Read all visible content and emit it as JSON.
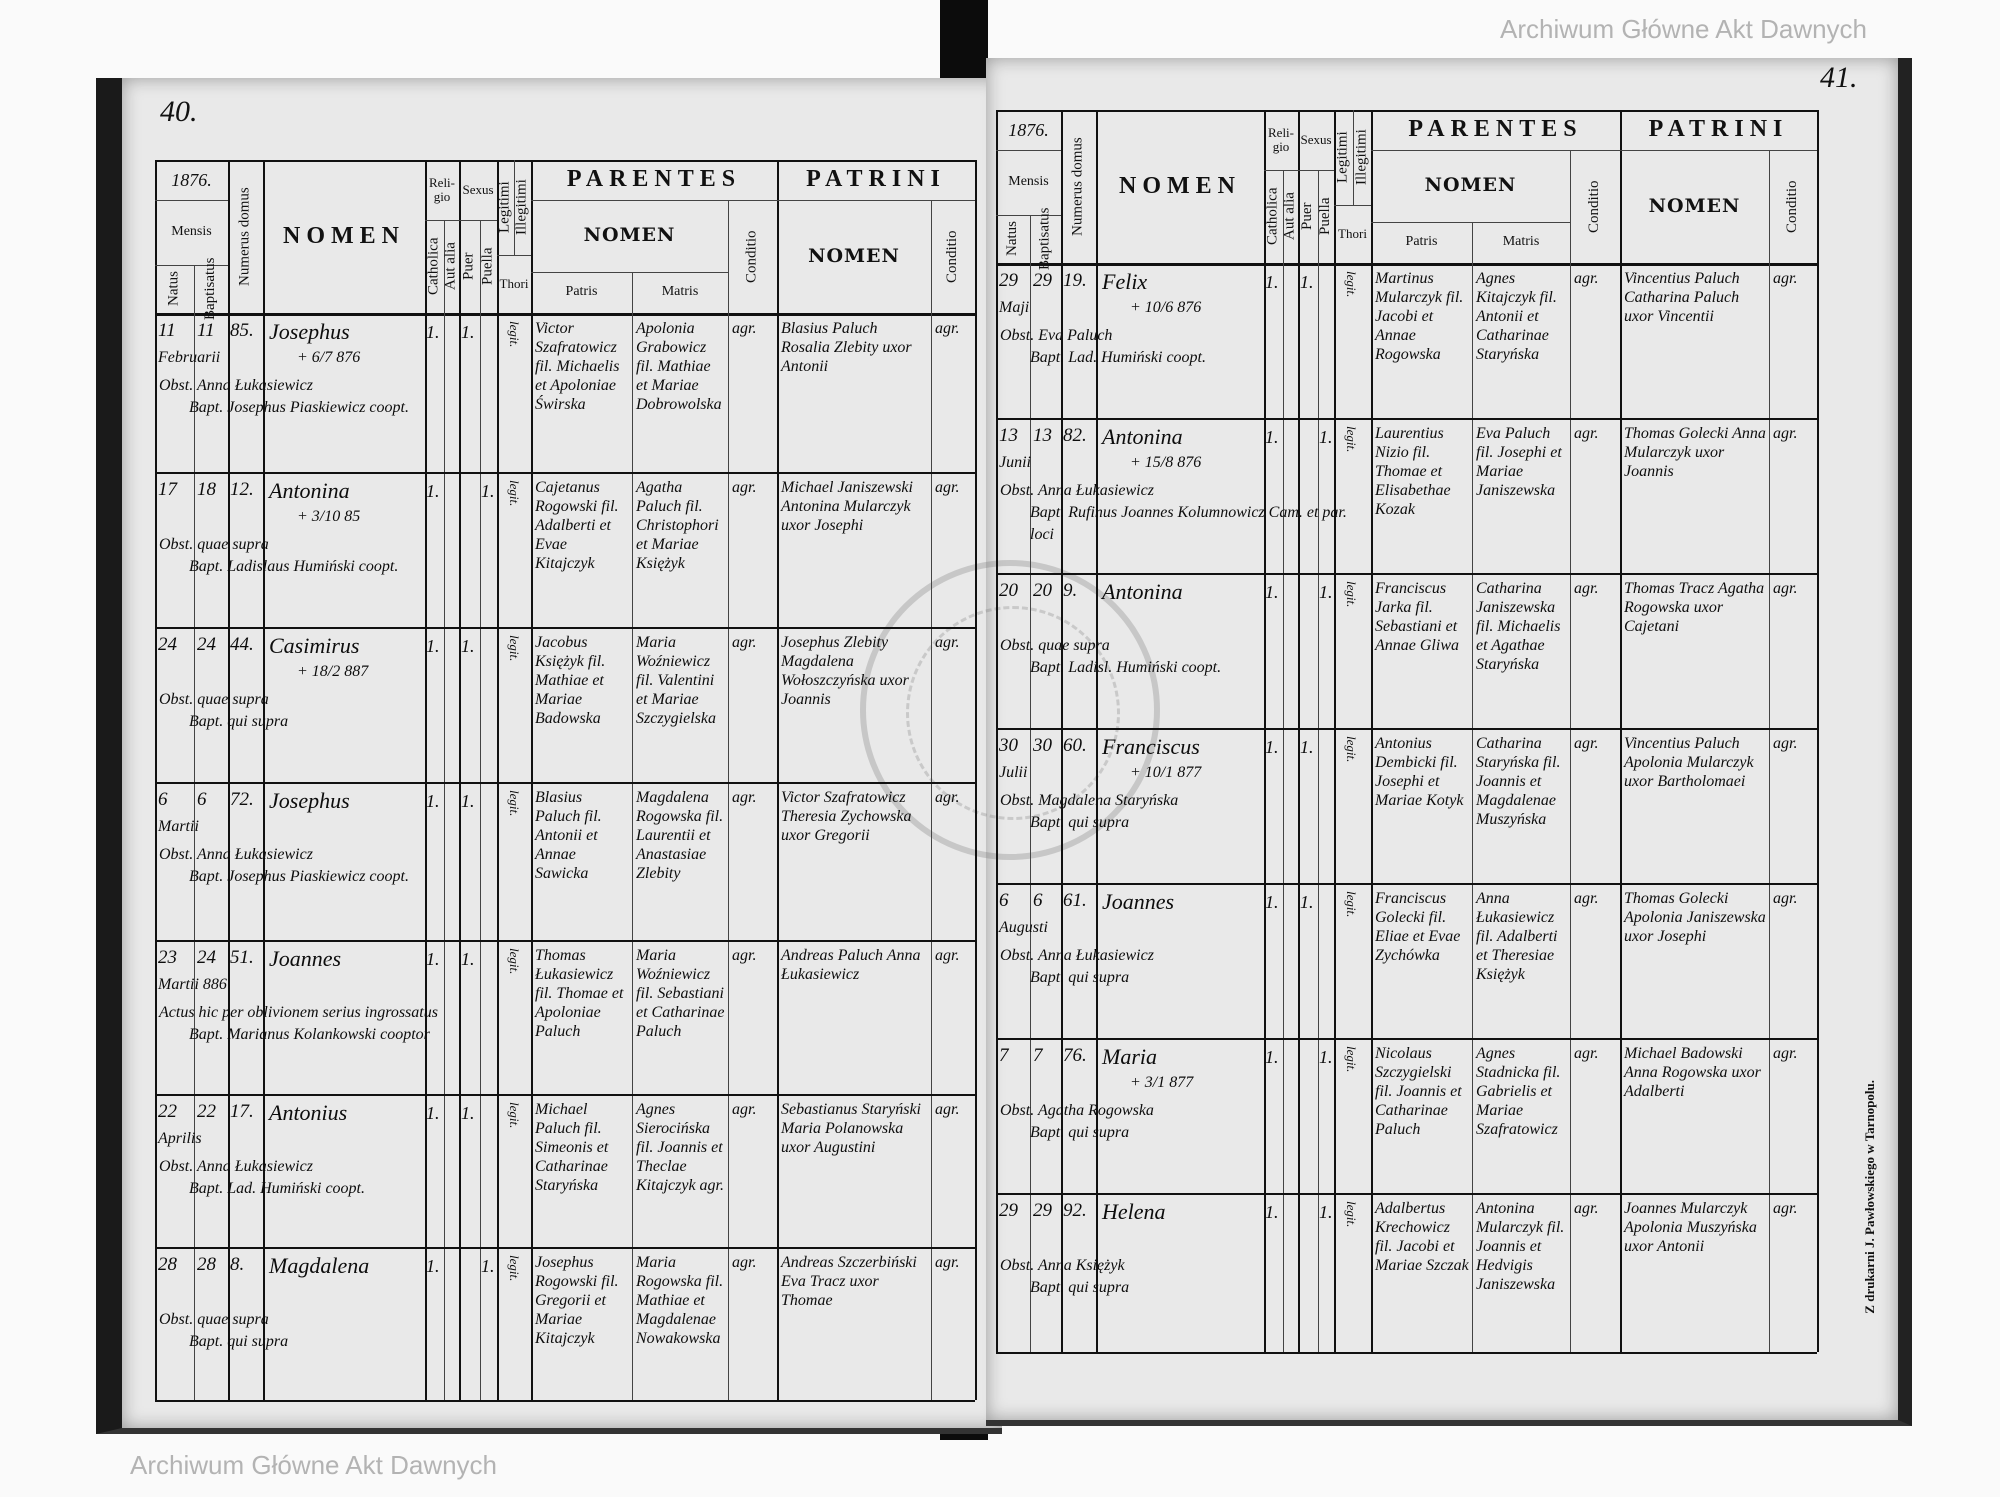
{
  "watermark": "Archiwum Główne Akt Dawnych",
  "stamp_text": "ARCHIWUM GŁÓWNE AKT DAWNYCH",
  "imprint": "Z drukarni J. Pawłowskiego w Tarnopolu.",
  "headers": {
    "mensis": "Mensis",
    "natus": "Natus",
    "baptisatus": "Baptisatus",
    "numerus_domus": "Numerus domus",
    "nomen": "NOMEN",
    "religio": "Reli-gio",
    "catholica": "Catholica",
    "aut_alia": "Aut alia",
    "sexus": "Sexus",
    "puer": "Puer",
    "puella": "Puella",
    "legitimi": "Legitimi",
    "illegitimi": "Illegitimi",
    "thori": "Thori",
    "parentes": "PARENTES",
    "parentes_nomen": "NOMEN",
    "patris": "Patris",
    "matris": "Matris",
    "conditio": "Conditio",
    "patrini": "PATRINI",
    "patrini_nomen": "NOMEN"
  },
  "pages": [
    {
      "page_number": "40.",
      "year": "1876.",
      "entries": [
        {
          "natus": "11",
          "baptisatus": "11",
          "mensis": "Februarii",
          "domus": "85.",
          "nomen": "Josephus",
          "death": "+ 6/7 876",
          "catholica": "1.",
          "puer": "1.",
          "thori": "legit.",
          "patris": "Victor Szafratowicz fil. Michaelis et Apoloniae Świrska",
          "matris": "Apolonia Grabowicz fil. Mathiae et Mariae Dobrowolska",
          "conditio": "agr.",
          "patrini": "Blasius Paluch Rosalia Zlebity uxor Antonii",
          "patrini_conditio": "agr.",
          "note1": "Obst. Anna Łukasiewicz",
          "note2": "Bapt. Josephus Piaskiewicz coopt."
        },
        {
          "natus": "17",
          "baptisatus": "18",
          "domus": "12.",
          "nomen": "Antonina",
          "death": "+ 3/10 85",
          "catholica": "1.",
          "puella": "1.",
          "thori": "legit.",
          "patris": "Cajetanus Rogowski fil. Adalberti et Evae Kitajczyk",
          "matris": "Agatha Paluch fil. Christophori et Mariae Księżyk",
          "conditio": "agr.",
          "patrini": "Michael Janiszewski Antonina Mularczyk uxor Josephi",
          "patrini_conditio": "agr.",
          "note1": "Obst. quae supra",
          "note2": "Bapt. Ladislaus Humiński coopt."
        },
        {
          "natus": "24",
          "baptisatus": "24",
          "domus": "44.",
          "nomen": "Casimirus",
          "death": "+ 18/2 887",
          "catholica": "1.",
          "puer": "1.",
          "thori": "legit.",
          "patris": "Jacobus Księżyk fil. Mathiae et Mariae Badowska",
          "matris": "Maria Woźniewicz fil. Valentini et Mariae Szczygielska",
          "conditio": "agr.",
          "patrini": "Josephus Zlebity Magdalena Wołoszczyńska uxor Joannis",
          "patrini_conditio": "agr.",
          "note1": "Obst. quae supra",
          "note2": "Bapt. qui supra"
        },
        {
          "natus": "6",
          "baptisatus": "6",
          "mensis": "Martii",
          "domus": "72.",
          "nomen": "Josephus",
          "catholica": "1.",
          "puer": "1.",
          "thori": "legit.",
          "patris": "Blasius Paluch fil. Antonii et Annae Sawicka",
          "matris": "Magdalena Rogowska fil. Laurentii et Anastasiae Zlebity",
          "conditio": "agr.",
          "patrini": "Victor Szafratowicz Theresia Zychowska uxor Gregorii",
          "patrini_conditio": "agr.",
          "note1": "Obst. Anna Łukasiewicz",
          "note2": "Bapt. Josephus Piaskiewicz coopt."
        },
        {
          "natus": "23",
          "baptisatus": "24",
          "mensis": "Martii 886",
          "domus": "51.",
          "nomen": "Joannes",
          "catholica": "1.",
          "puer": "1.",
          "thori": "legit.",
          "patris": "Thomas Łukasiewicz fil. Thomae et Apoloniae Paluch",
          "matris": "Maria Woźniewicz fil. Sebastiani et Catharinae Paluch",
          "conditio": "agr.",
          "patrini": "Andreas Paluch Anna Łukasiewicz",
          "patrini_conditio": "agr.",
          "note1": "Actus hic per oblivionem serius ingrossatus",
          "note2": "Bapt. Marianus Kolankowski cooptor"
        },
        {
          "natus": "22",
          "baptisatus": "22",
          "mensis": "Aprilis",
          "domus": "17.",
          "nomen": "Antonius",
          "catholica": "1.",
          "puer": "1.",
          "thori": "legit.",
          "patris": "Michael Paluch fil. Simeonis et Catharinae Staryńska",
          "matris": "Agnes Sierocińska fil. Joannis et Theclae Kitajczyk agr.",
          "conditio": "agr.",
          "patrini": "Sebastianus Staryński Maria Polanowska uxor Augustini",
          "patrini_conditio": "agr.",
          "note1": "Obst. Anna Łukasiewicz",
          "note2": "Bapt. Lad. Humiński coopt."
        },
        {
          "natus": "28",
          "baptisatus": "28",
          "domus": "8.",
          "nomen": "Magdalena",
          "catholica": "1.",
          "puella": "1.",
          "thori": "legit.",
          "patris": "Josephus Rogowski fil. Gregorii et Mariae Kitajczyk",
          "matris": "Maria Rogowska fil. Mathiae et Magdalenae Nowakowska",
          "conditio": "agr.",
          "patrini": "Andreas Szczerbiński Eva Tracz uxor Thomae",
          "patrini_conditio": "agr.",
          "note1": "Obst. quae supra",
          "note2": "Bapt. qui supra"
        }
      ]
    },
    {
      "page_number": "41.",
      "year": "1876.",
      "entries": [
        {
          "natus": "29",
          "baptisatus": "29",
          "mensis": "Maji",
          "domus": "19.",
          "nomen": "Felix",
          "death": "+ 10/6 876",
          "catholica": "1.",
          "puer": "1.",
          "thori": "legit.",
          "patris": "Martinus Mularczyk fil. Jacobi et Annae Rogowska",
          "matris": "Agnes Kitajczyk fil. Antonii et Catharinae Staryńska",
          "conditio": "agr.",
          "patrini": "Vincentius Paluch Catharina Paluch uxor Vincentii",
          "patrini_conditio": "agr.",
          "note1": "Obst. Eva Paluch",
          "note2": "Bapt. Lad. Humiński coopt."
        },
        {
          "natus": "13",
          "baptisatus": "13",
          "mensis": "Junii",
          "domus": "82.",
          "nomen": "Antonina",
          "death": "+ 15/8 876",
          "catholica": "1.",
          "puella": "1.",
          "thori": "legit.",
          "patris": "Laurentius Nizio fil. Thomae et Elisabethae Kozak",
          "matris": "Eva Paluch fil. Josephi et Mariae Janiszewska",
          "conditio": "agr.",
          "patrini": "Thomas Golecki Anna Mularczyk uxor Joannis",
          "patrini_conditio": "agr.",
          "note1": "Obst. Anna Łukasiewicz",
          "note2": "Bapt. Rufinus Joannes Kolumnowicz Cam. et par. loci"
        },
        {
          "natus": "20",
          "baptisatus": "20",
          "domus": "9.",
          "nomen": "Antonina",
          "catholica": "1.",
          "puella": "1.",
          "thori": "legit.",
          "patris": "Franciscus Jarka fil. Sebastiani et Annae Gliwa",
          "matris": "Catharina Janiszewska fil. Michaelis et Agathae Staryńska",
          "conditio": "agr.",
          "patrini": "Thomas Tracz Agatha Rogowska uxor Cajetani",
          "patrini_conditio": "agr.",
          "note1": "Obst. quae supra",
          "note2": "Bapt. Ladisl. Humiński coopt."
        },
        {
          "natus": "30",
          "baptisatus": "30",
          "mensis": "Julii",
          "domus": "60.",
          "nomen": "Franciscus",
          "death": "+ 10/1 877",
          "catholica": "1.",
          "puer": "1.",
          "thori": "legit.",
          "patris": "Antonius Dembicki fil. Josephi et Mariae Kotyk",
          "matris": "Catharina Staryńska fil. Joannis et Magdalenae Muszyńska",
          "conditio": "agr.",
          "patrini": "Vincentius Paluch Apolonia Mularczyk uxor Bartholomaei",
          "patrini_conditio": "agr.",
          "note1": "Obst. Magdalena Staryńska",
          "note2": "Bapt. qui supra"
        },
        {
          "natus": "6",
          "baptisatus": "6",
          "mensis": "Augusti",
          "domus": "61.",
          "nomen": "Joannes",
          "catholica": "1.",
          "puer": "1.",
          "thori": "legit.",
          "patris": "Franciscus Golecki fil. Eliae et Evae Zychówka",
          "matris": "Anna Łukasiewicz fil. Adalberti et Theresiae Księżyk",
          "conditio": "agr.",
          "patrini": "Thomas Golecki Apolonia Janiszewska uxor Josephi",
          "patrini_conditio": "agr.",
          "note1": "Obst. Anna Łukasiewicz",
          "note2": "Bapt. qui supra"
        },
        {
          "natus": "7",
          "baptisatus": "7",
          "domus": "76.",
          "nomen": "Maria",
          "death": "+ 3/1 877",
          "catholica": "1.",
          "puella": "1.",
          "thori": "legit.",
          "patris": "Nicolaus Szczygielski fil. Joannis et Catharinae Paluch",
          "matris": "Agnes Stadnicka fil. Gabrielis et Mariae Szafratowicz",
          "conditio": "agr.",
          "patrini": "Michael Badowski Anna Rogowska uxor Adalberti",
          "patrini_conditio": "agr.",
          "note1": "Obst. Agatha Rogowska",
          "note2": "Bapt. qui supra"
        },
        {
          "natus": "29",
          "baptisatus": "29",
          "domus": "92.",
          "nomen": "Helena",
          "catholica": "1.",
          "puella": "1.",
          "thori": "legit.",
          "patris": "Adalbertus Krechowicz fil. Jacobi et Mariae Szczak",
          "matris": "Antonina Mularczyk fil. Joannis et Hedvigis Janiszewska",
          "conditio": "agr.",
          "patrini": "Joannes Mularczyk Apolonia Muszyńska uxor Antonii",
          "patrini_conditio": "agr.",
          "note1": "Obst. Anna Księżyk",
          "note2": "Bapt. qui supra"
        }
      ]
    }
  ]
}
